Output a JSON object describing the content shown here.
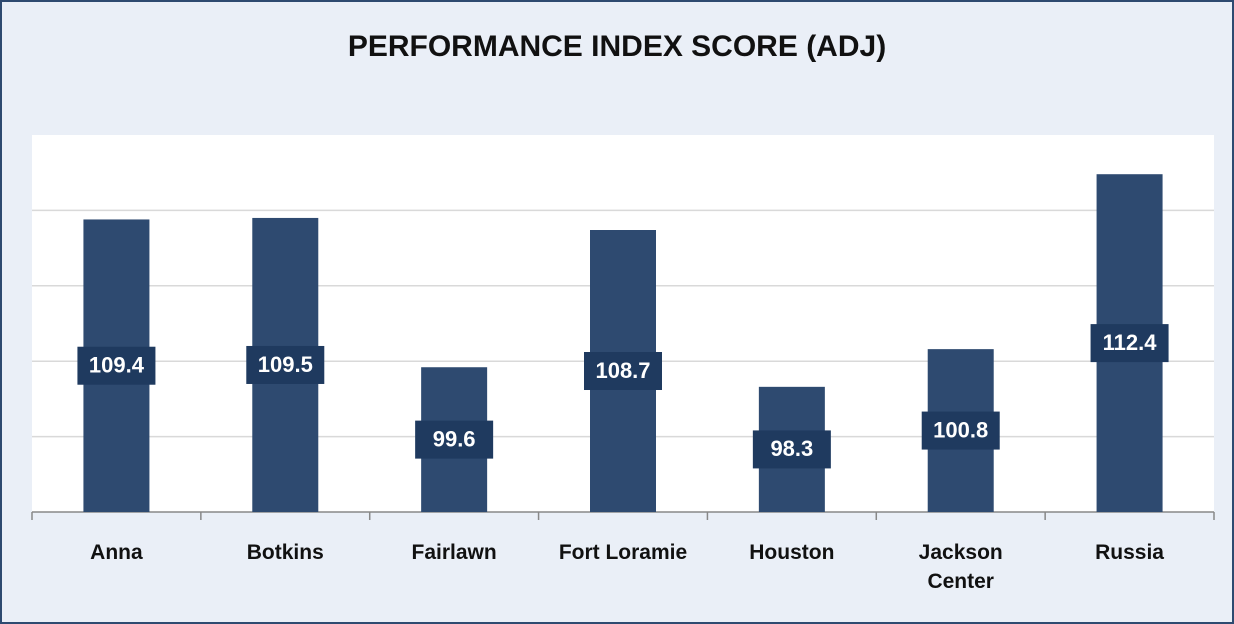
{
  "chart_data": {
    "type": "bar",
    "title": "PERFORMANCE INDEX SCORE (ADJ)",
    "categories": [
      "Anna",
      "Botkins",
      "Fairlawn",
      "Fort Loramie",
      "Houston",
      "Jackson Center",
      "Russia"
    ],
    "values": [
      109.4,
      109.5,
      99.6,
      108.7,
      98.3,
      100.8,
      112.4
    ],
    "color": "#2e4a70",
    "ylim": [
      90,
      115
    ],
    "yticks": [
      90,
      95,
      100,
      105,
      110,
      115
    ],
    "grid": true
  }
}
